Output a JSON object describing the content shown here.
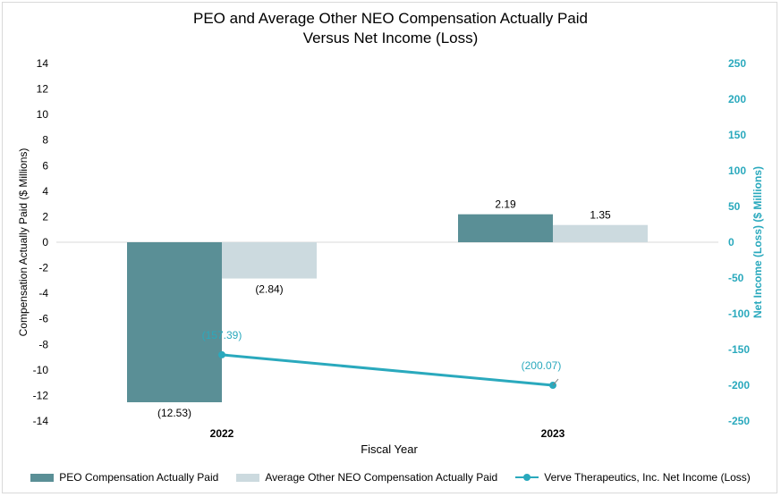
{
  "colors": {
    "peo": "#5a8f96",
    "neo": "#ccdadf",
    "line": "#2aa9bd",
    "axis_right": "#2aa9bd",
    "zero_line": "#d9d9d9"
  },
  "chart_data": {
    "type": "bar",
    "title_line1": "PEO and Average Other NEO Compensation Actually Paid",
    "title_line2": "Versus Net Income (Loss)",
    "categories": [
      "2022",
      "2023"
    ],
    "xlabel": "Fiscal Year",
    "ylabel": "Compensation Actually Paid ($ Millions)",
    "y2label": "Net Income (Loss) ($ Millions)",
    "ylim": [
      -14,
      14
    ],
    "yticks": [
      14,
      12,
      10,
      8,
      6,
      4,
      2,
      0,
      -2,
      -4,
      -6,
      -8,
      -10,
      -12,
      -14
    ],
    "ytick_labels": [
      "14",
      "12",
      "10",
      "8",
      "6",
      "4",
      "2",
      "0",
      "-2",
      "-4",
      "-6",
      "-8",
      "-10",
      "-12",
      "-14"
    ],
    "y2lim": [
      -250,
      250
    ],
    "y2ticks": [
      250,
      200,
      150,
      100,
      50,
      0,
      -50,
      -100,
      -150,
      -200,
      -250
    ],
    "y2tick_labels": [
      "250",
      "200",
      "150",
      "100",
      "50",
      "0",
      "-50",
      "-100",
      "-150",
      "-200",
      "-250"
    ],
    "series": [
      {
        "name": "PEO Compensation Actually Paid",
        "type": "bar",
        "axis": "left",
        "values": [
          -12.53,
          2.19
        ],
        "labels": [
          "(12.53)",
          "2.19"
        ]
      },
      {
        "name": "Average Other NEO Compensation Actually Paid",
        "type": "bar",
        "axis": "left",
        "values": [
          -2.84,
          1.35
        ],
        "labels": [
          "(2.84)",
          "1.35"
        ]
      },
      {
        "name": "Verve Therapeutics, Inc. Net Income (Loss)",
        "type": "line",
        "axis": "right",
        "values": [
          -157.39,
          -200.07
        ],
        "labels": [
          "(157.39)",
          "(200.07)"
        ]
      }
    ]
  }
}
